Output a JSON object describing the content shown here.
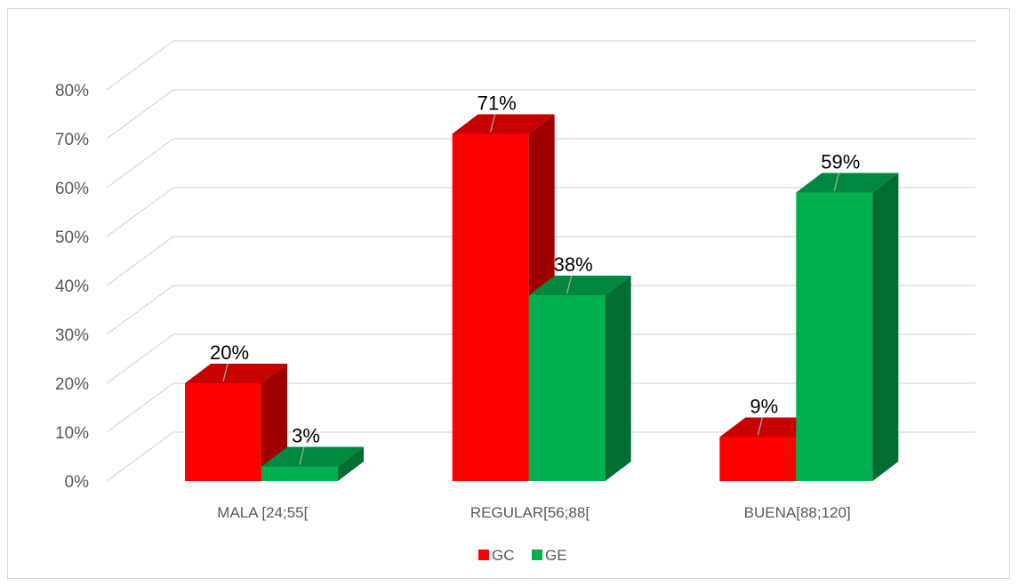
{
  "chart_data": {
    "type": "bar",
    "title": "",
    "xlabel": "",
    "ylabel": "",
    "categories": [
      "MALA [24;55[",
      "REGULAR[56;88[",
      "BUENA[88;120]"
    ],
    "series": [
      {
        "name": "GC",
        "values": [
          20,
          71,
          9
        ],
        "labels": [
          "20%",
          "71%",
          "9%"
        ],
        "color": "#ff0000"
      },
      {
        "name": "GE",
        "values": [
          3,
          38,
          59
        ],
        "labels": [
          "3%",
          "38%",
          "59%"
        ],
        "color": "#00b050"
      }
    ],
    "ylim": [
      0,
      80
    ],
    "yticks": [
      "0%",
      "10%",
      "20%",
      "30%",
      "40%",
      "50%",
      "60%",
      "70%",
      "80%"
    ],
    "grid": true,
    "legend_position": "bottom",
    "style": "3d-clustered-column"
  }
}
